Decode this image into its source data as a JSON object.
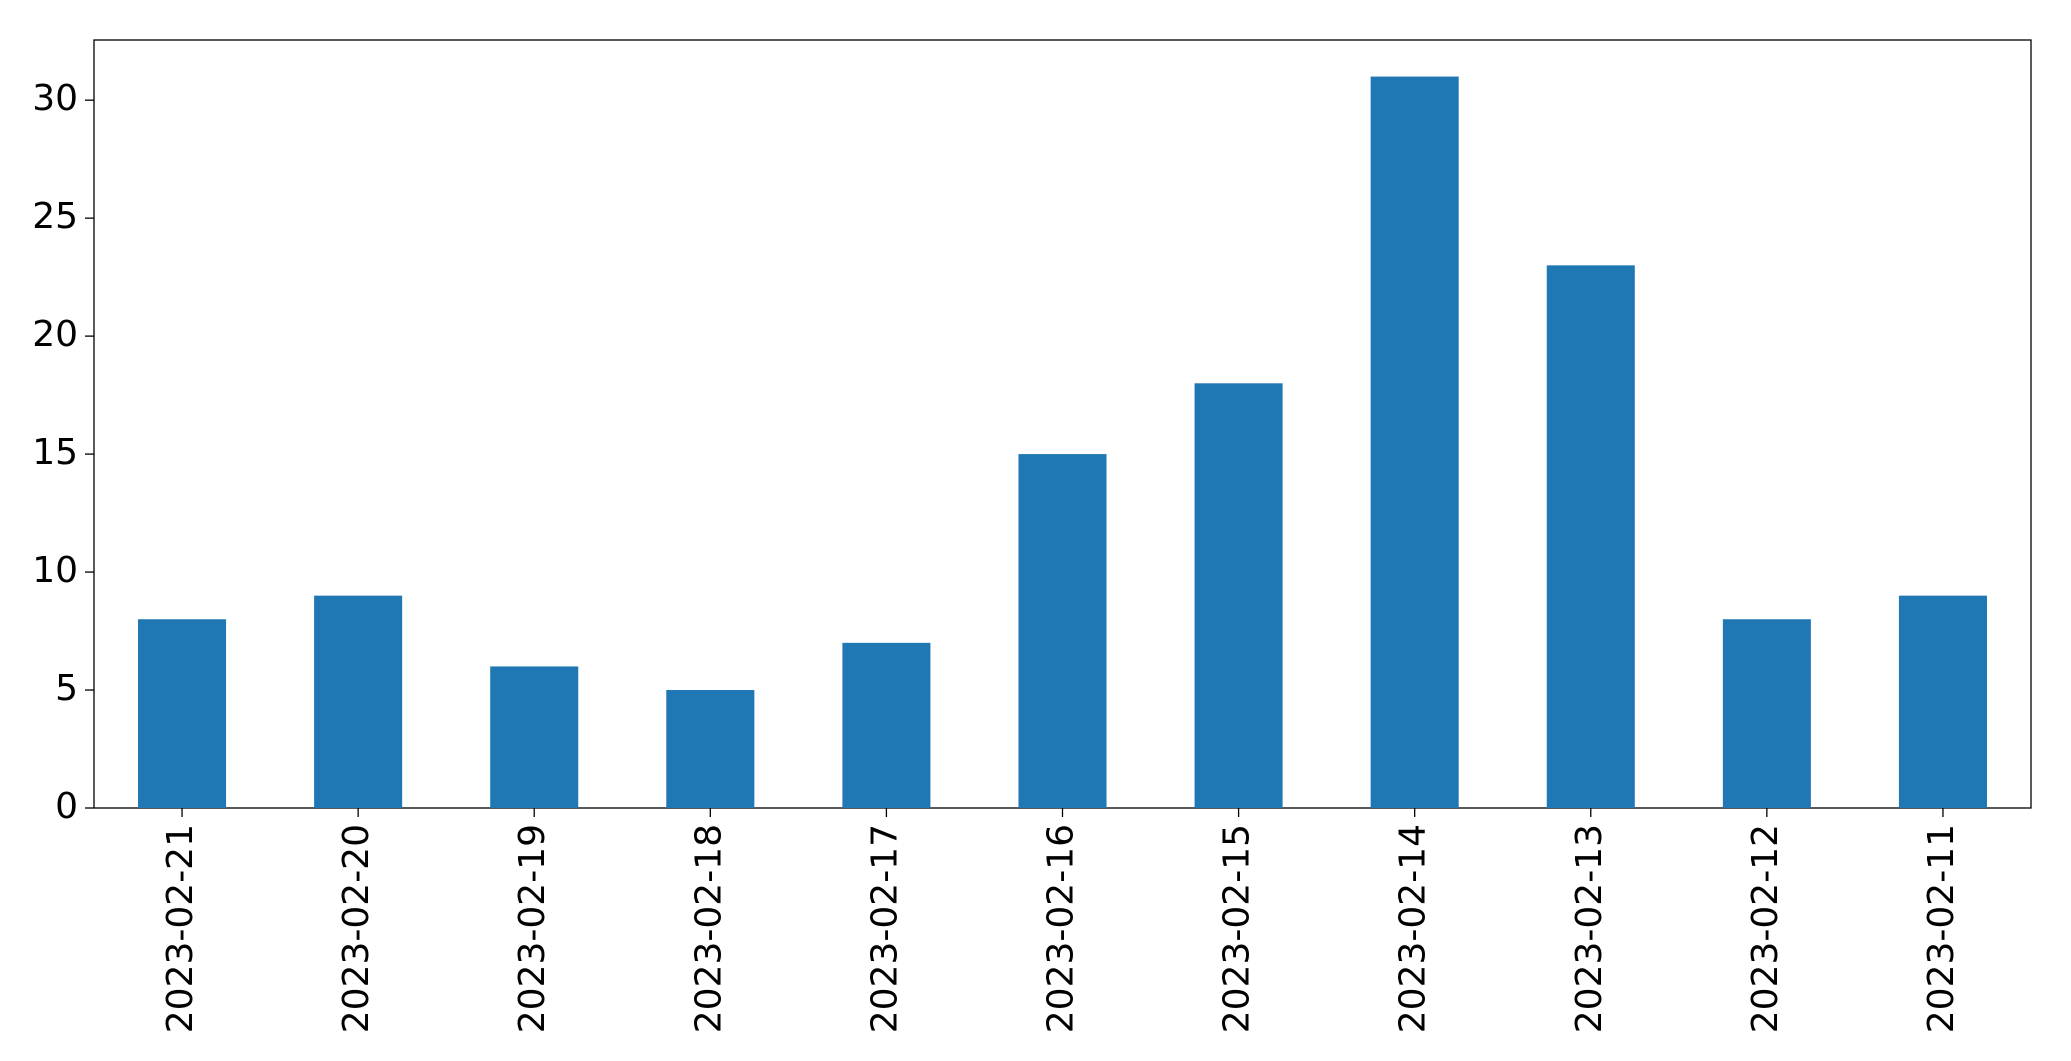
{
  "chart_data": {
    "type": "bar",
    "categories": [
      "2023-02-21",
      "2023-02-20",
      "2023-02-19",
      "2023-02-18",
      "2023-02-17",
      "2023-02-16",
      "2023-02-15",
      "2023-02-14",
      "2023-02-13",
      "2023-02-12",
      "2023-02-11"
    ],
    "values": [
      8,
      9,
      6,
      5,
      7,
      15,
      18,
      31,
      23,
      8,
      9
    ],
    "color": "#1f77b4",
    "ylim": [
      0,
      32.55
    ],
    "yticks": [
      0,
      5,
      10,
      15,
      20,
      25,
      30
    ],
    "grid": false
  }
}
